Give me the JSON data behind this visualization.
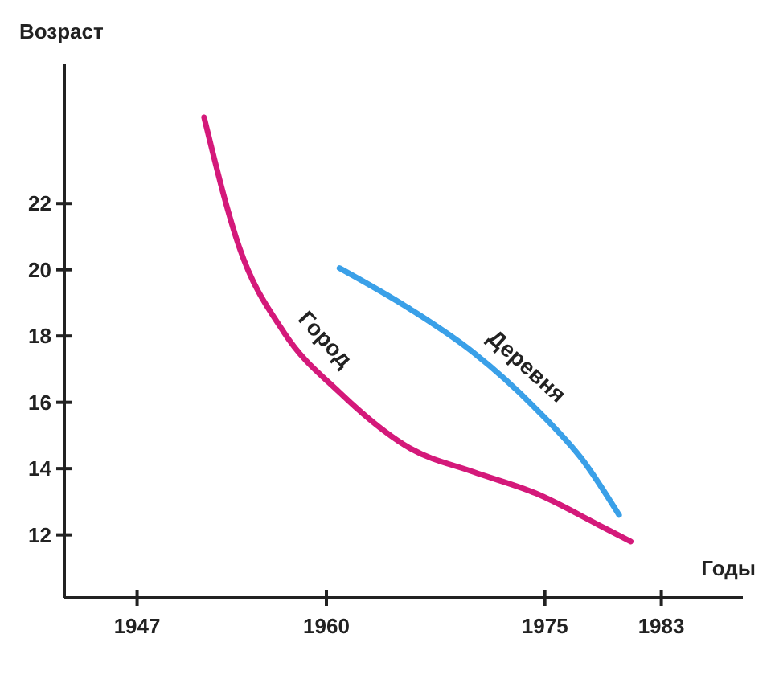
{
  "chart_data": {
    "type": "line",
    "xlabel": "Годы",
    "ylabel": "Возраст",
    "xlim": [
      1942,
      1988.6
    ],
    "xticks": [
      1947,
      1960,
      1975,
      1983
    ],
    "ylim": [
      10.1,
      26.2
    ],
    "yticks": [
      12,
      14,
      16,
      18,
      20,
      22
    ],
    "grid": false,
    "marker": "none",
    "line_style": "solid",
    "series": [
      {
        "name": "Город",
        "color": "#d4197a",
        "x": [
          1951.6,
          1954,
          1957.1,
          1960.9,
          1965.8,
          1970.1,
          1974.4,
          1978.7,
          1980.9
        ],
        "values": [
          24.6,
          20.7,
          18.1,
          16.3,
          14.6,
          13.9,
          13.25,
          12.3,
          11.8
        ]
      },
      {
        "name": "Деревня",
        "color": "#3aa0e8",
        "x": [
          1960.9,
          1965.8,
          1970.1,
          1974.4,
          1977.7,
          1980.1
        ],
        "values": [
          20.05,
          18.8,
          17.5,
          15.8,
          14.2,
          12.6
        ]
      }
    ]
  }
}
